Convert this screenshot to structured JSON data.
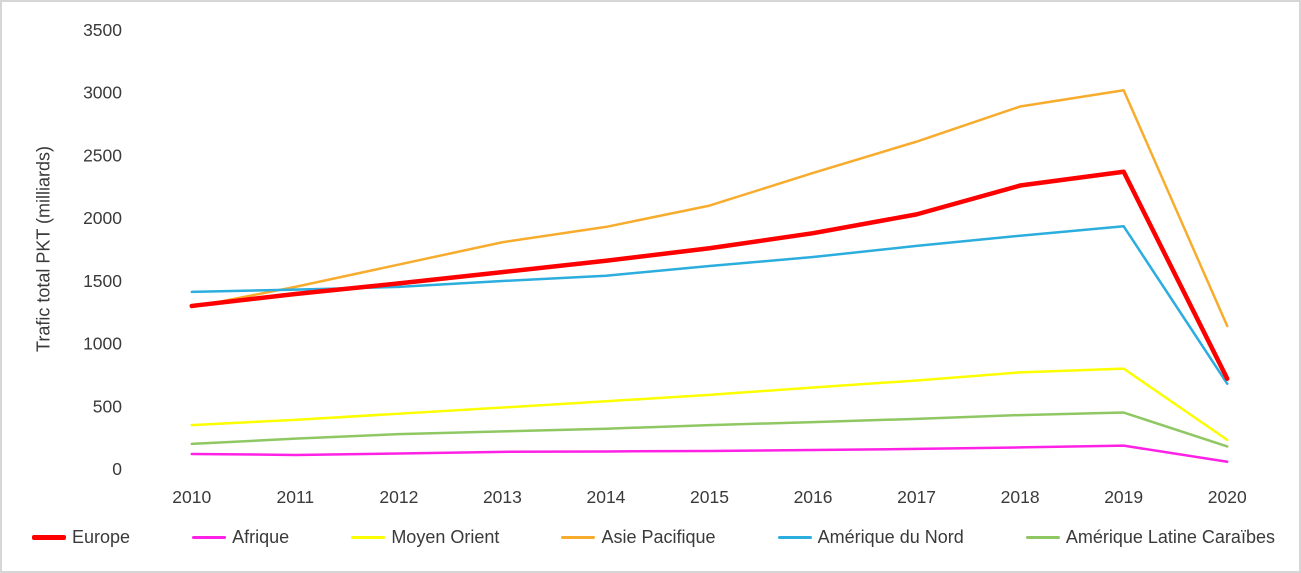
{
  "chart_data": {
    "type": "line",
    "title": "",
    "xlabel": "",
    "ylabel": "Trafic total PKT (milliards)",
    "ylim": [
      0,
      3500
    ],
    "yticks": [
      0,
      500,
      1000,
      1500,
      2000,
      2500,
      3000,
      3500
    ],
    "categories": [
      "2010",
      "2011",
      "2012",
      "2013",
      "2014",
      "2015",
      "2016",
      "2017",
      "2018",
      "2019",
      "2020"
    ],
    "grid": false,
    "legend_position": "bottom",
    "series": [
      {
        "name": "Europe",
        "color": "#ff0000",
        "width": 4.5,
        "values": [
          1300,
          1395,
          1480,
          1570,
          1660,
          1760,
          1880,
          2030,
          2260,
          2370,
          720
        ]
      },
      {
        "name": "Afrique",
        "color": "#ff22e6",
        "width": 2.5,
        "values": [
          120,
          112,
          124,
          137,
          140,
          144,
          151,
          160,
          172,
          186,
          58
        ]
      },
      {
        "name": "Moyen Orient",
        "color": "#fbff00",
        "width": 2.5,
        "values": [
          350,
          392,
          441,
          490,
          540,
          591,
          650,
          706,
          770,
          800,
          232
        ]
      },
      {
        "name": "Asie Pacifique",
        "color": "#f8ac2d",
        "width": 2.5,
        "values": [
          1290,
          1452,
          1630,
          1808,
          1930,
          2100,
          2360,
          2610,
          2890,
          3020,
          1140
        ]
      },
      {
        "name": "Amérique du Nord",
        "color": "#2badde",
        "width": 2.5,
        "values": [
          1412,
          1430,
          1452,
          1499,
          1541,
          1618,
          1690,
          1779,
          1860,
          1935,
          680
        ]
      },
      {
        "name": "Amérique Latine Caraïbes",
        "color": "#8fc863",
        "width": 2.5,
        "values": [
          200,
          242,
          278,
          300,
          321,
          350,
          374,
          400,
          430,
          450,
          180
        ]
      }
    ]
  }
}
